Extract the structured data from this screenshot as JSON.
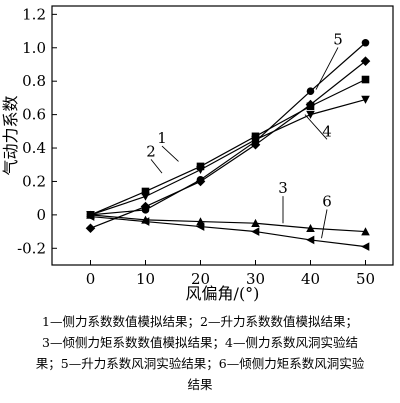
{
  "chart_data": {
    "type": "line",
    "xlabel": "风偏角/(°)",
    "ylabel": "气动力系数",
    "xlim": [
      -7,
      55
    ],
    "ylim": [
      -0.3,
      1.25
    ],
    "x_ticks": [
      "0",
      "10",
      "20",
      "30",
      "40",
      "50"
    ],
    "y_ticks": [
      "-0.2",
      "0",
      "0.2",
      "0.4",
      "0.6",
      "0.8",
      "1.0",
      "1.2"
    ],
    "x": [
      0,
      10,
      20,
      30,
      40,
      50
    ],
    "series": [
      {
        "name": "1",
        "marker": "diamond",
        "values": [
          -0.08,
          0.05,
          0.2,
          0.42,
          0.66,
          0.92
        ]
      },
      {
        "name": "2",
        "marker": "square",
        "values": [
          0.0,
          0.14,
          0.29,
          0.47,
          0.65,
          0.81
        ]
      },
      {
        "name": "3",
        "marker": "triangle-up",
        "values": [
          0.0,
          -0.03,
          -0.04,
          -0.05,
          -0.08,
          -0.1
        ]
      },
      {
        "name": "4",
        "marker": "triangle-down",
        "values": [
          0.0,
          0.11,
          0.27,
          0.45,
          0.6,
          0.69
        ]
      },
      {
        "name": "5",
        "marker": "circle",
        "values": [
          0.0,
          0.03,
          0.21,
          0.44,
          0.74,
          1.03
        ]
      },
      {
        "name": "6",
        "marker": "triangle-left",
        "values": [
          -0.01,
          -0.04,
          -0.07,
          -0.1,
          -0.15,
          -0.19
        ]
      }
    ],
    "annotations": [
      {
        "text": "1",
        "at": [
          13,
          0.43
        ],
        "points_to": [
          16,
          0.32
        ]
      },
      {
        "text": "2",
        "at": [
          11,
          0.35
        ],
        "points_to": [
          13,
          0.25
        ]
      },
      {
        "text": "3",
        "at": [
          35,
          0.13
        ],
        "points_to": [
          35,
          -0.05
        ]
      },
      {
        "text": "4",
        "at": [
          43,
          0.47
        ],
        "points_to": [
          39,
          0.6
        ]
      },
      {
        "text": "5",
        "at": [
          45,
          1.02
        ],
        "points_to": [
          41,
          0.75
        ]
      },
      {
        "text": "6",
        "at": [
          43,
          0.05
        ],
        "points_to": [
          42,
          -0.14
        ]
      }
    ]
  },
  "caption": {
    "line1": "1—侧力系数数值模拟结果；2—升力系数数值模拟结果；",
    "line2": "3—倾侧力矩系数数值模拟结果；4—侧力系数风洞实验结",
    "line3": "果；5—升力系数风洞实验结果；6—倾侧力矩系数风洞实验",
    "line4": "结果"
  }
}
